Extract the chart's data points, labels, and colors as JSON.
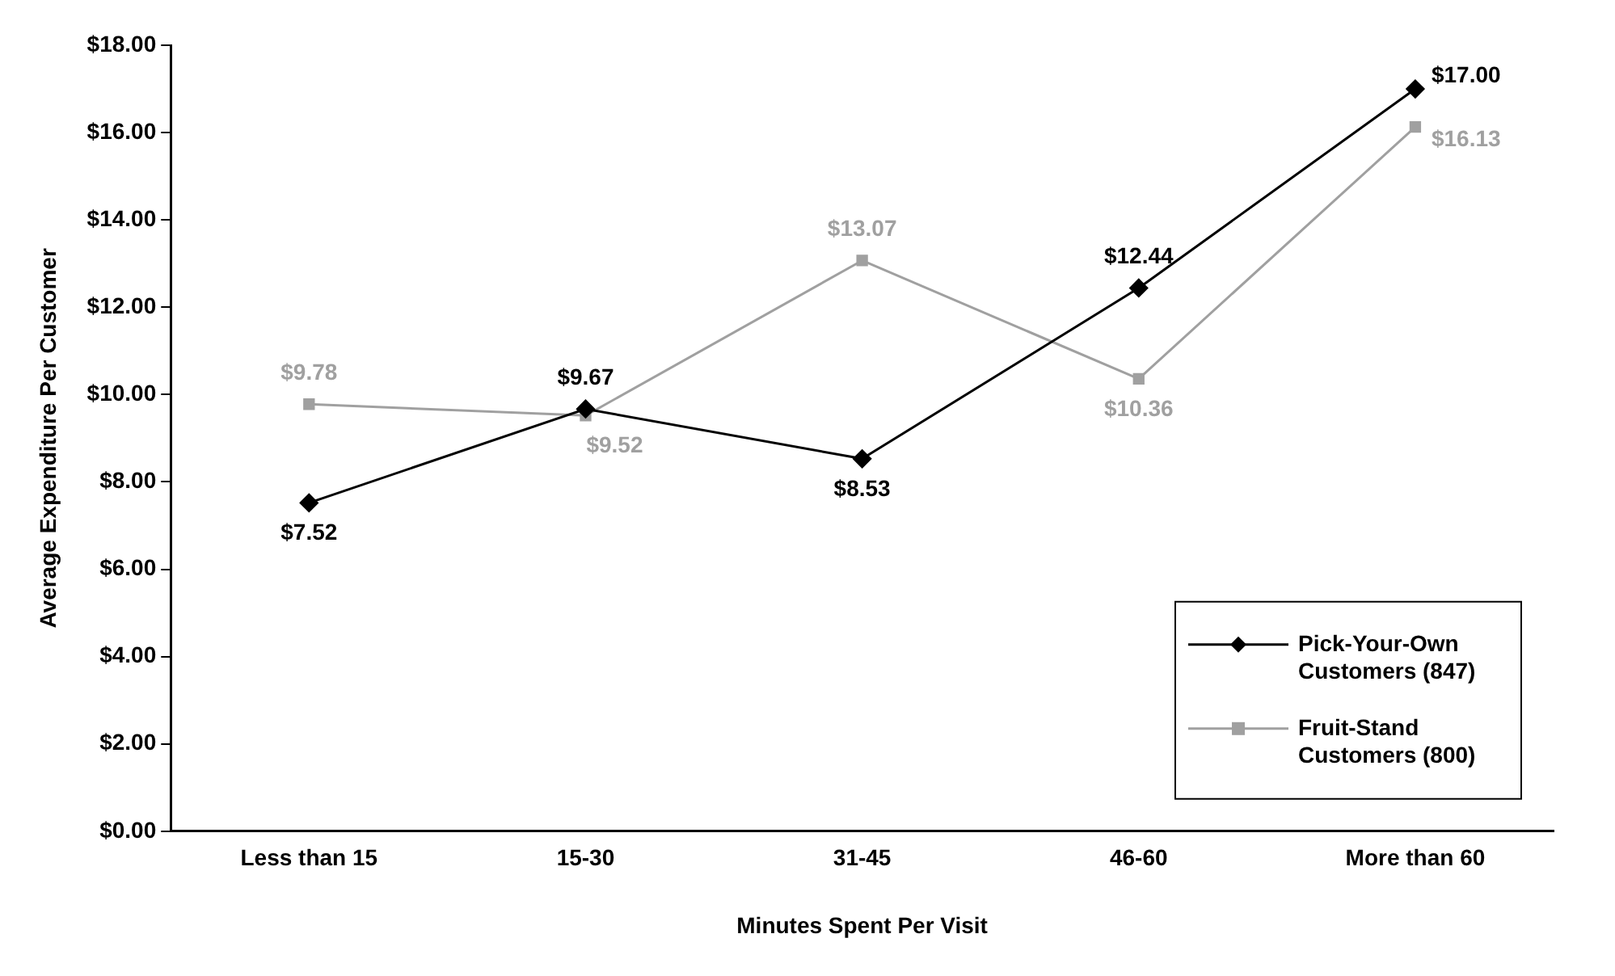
{
  "chart_data": {
    "type": "line",
    "xlabel": "Minutes Spent Per Visit",
    "ylabel": "Average Expenditure Per Customer",
    "categories": [
      "Less than 15",
      "15-30",
      "31-45",
      "46-60",
      "More than 60"
    ],
    "series": [
      {
        "name": "Pick-Your-Own Customers (847)",
        "color": "#000000",
        "marker": "diamond",
        "values": [
          7.52,
          9.67,
          8.53,
          12.44,
          17.0
        ],
        "value_labels": [
          "$7.52",
          "$9.67",
          "$8.53",
          "$12.44",
          "$17.00"
        ]
      },
      {
        "name": "Fruit-Stand Customers (800)",
        "color": "#a0a0a0",
        "marker": "square",
        "values": [
          9.78,
          9.52,
          13.07,
          10.36,
          16.13
        ],
        "value_labels": [
          "$9.78",
          "$9.52",
          "$13.07",
          "$10.36",
          "$16.13"
        ]
      }
    ],
    "ylim": [
      0,
      18
    ],
    "yticks": [
      {
        "value": 0,
        "label": "$0.00"
      },
      {
        "value": 2,
        "label": "$2.00"
      },
      {
        "value": 4,
        "label": "$4.00"
      },
      {
        "value": 6,
        "label": "$6.00"
      },
      {
        "value": 8,
        "label": "$8.00"
      },
      {
        "value": 10,
        "label": "$10.00"
      },
      {
        "value": 12,
        "label": "$12.00"
      },
      {
        "value": 14,
        "label": "$14.00"
      },
      {
        "value": 16,
        "label": "$16.00"
      },
      {
        "value": 18,
        "label": "$18.00"
      }
    ],
    "grid": false,
    "legend": "bottom right",
    "line_style": "solid"
  }
}
